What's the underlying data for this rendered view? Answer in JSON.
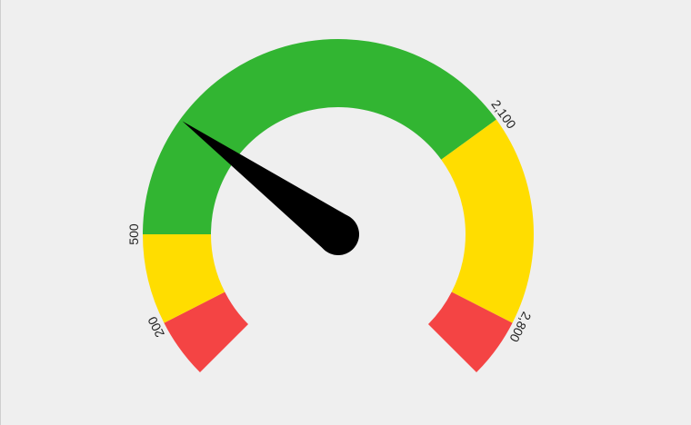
{
  "chart_data": {
    "type": "gauge",
    "min": 0,
    "max": 3000,
    "value": 900,
    "bands": [
      {
        "from": 0,
        "to": 200,
        "color": "#f44444"
      },
      {
        "from": 200,
        "to": 500,
        "color": "#ffdd00"
      },
      {
        "from": 500,
        "to": 2100,
        "color": "#32b532"
      },
      {
        "from": 2100,
        "to": 2800,
        "color": "#ffdd00"
      },
      {
        "from": 2800,
        "to": 3000,
        "color": "#f44444"
      }
    ],
    "tick_labels": [
      {
        "value": 200,
        "label": "200"
      },
      {
        "value": 500,
        "label": "500"
      },
      {
        "value": 2100,
        "label": "2,100"
      },
      {
        "value": 2800,
        "label": "2,800"
      }
    ],
    "needle_color": "#000000",
    "background": "#efefef"
  }
}
